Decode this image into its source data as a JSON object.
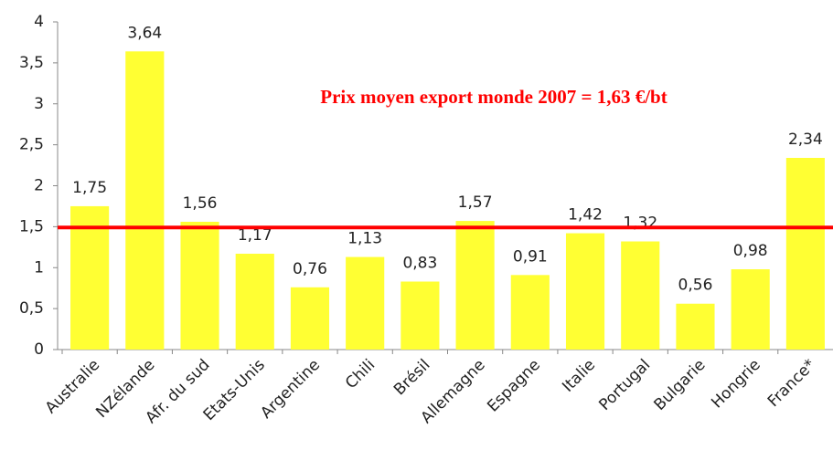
{
  "chart_data": {
    "type": "bar",
    "annotation": "Prix moyen export monde 2007 = 1,63 €/bt",
    "categories": [
      "Australie",
      "NZélande",
      "Afr. du sud",
      "Etats-Unis",
      "Argentine",
      "Chili",
      "Brésil",
      "Allemagne",
      "Espagne",
      "Italie",
      "Portugal",
      "Bulgarie",
      "Hongrie",
      "France*"
    ],
    "values": [
      1.75,
      3.64,
      1.56,
      1.17,
      0.76,
      1.13,
      0.83,
      1.57,
      0.91,
      1.42,
      1.32,
      0.56,
      0.98,
      2.34
    ],
    "value_labels": [
      "1,75",
      "3,64",
      "1,56",
      "1,17",
      "0,76",
      "1,13",
      "0,83",
      "1,57",
      "0,91",
      "1,42",
      "1,32",
      "0,56",
      "0,98",
      "2,34"
    ],
    "color": "#ffff33",
    "ylim": [
      0,
      4
    ],
    "yticks": [
      0,
      {
        "value": 0.5,
        "label": "0,5"
      },
      1,
      {
        "value": 1.5,
        "label": "1,5"
      },
      2,
      {
        "value": 2.5,
        "label": "2,5"
      },
      3,
      {
        "value": 3.5,
        "label": "3,5"
      },
      4
    ],
    "reference_line": {
      "value": 1.49,
      "color": "#ff0000"
    }
  }
}
